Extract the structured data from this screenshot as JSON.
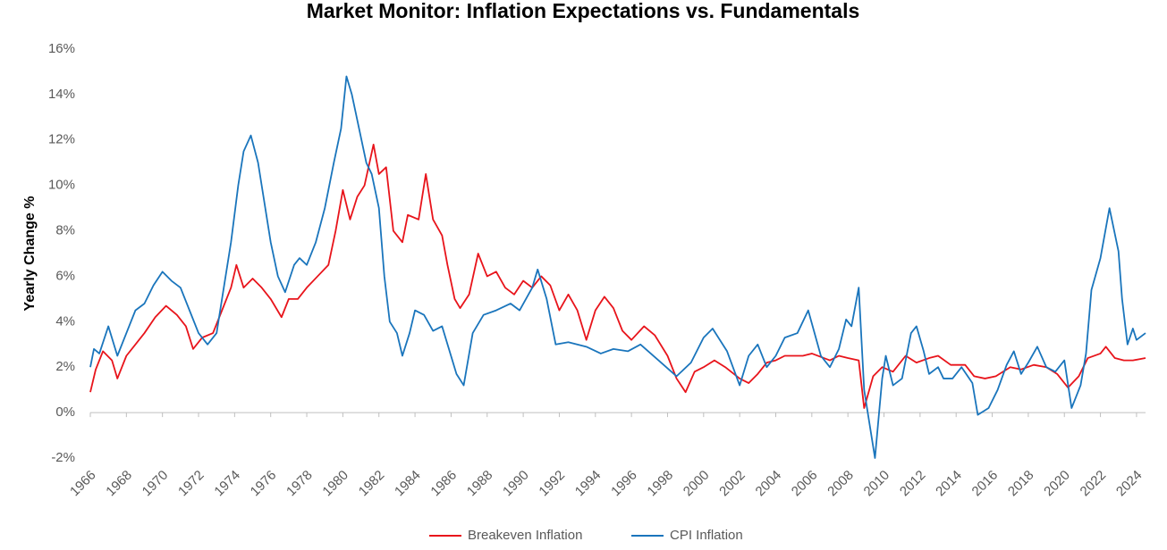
{
  "chart_data": {
    "type": "line",
    "title": "Market Monitor: Inflation Expectations vs. Fundamentals",
    "y_label": "Yearly Change %",
    "xlim": [
      1966,
      2024.5
    ],
    "xticks": [
      1966,
      1968,
      1970,
      1972,
      1974,
      1976,
      1978,
      1980,
      1982,
      1984,
      1986,
      1988,
      1990,
      1992,
      1994,
      1996,
      1998,
      2000,
      2002,
      2004,
      2006,
      2008,
      2010,
      2012,
      2014,
      2016,
      2018,
      2020,
      2022,
      2024
    ],
    "ylim": [
      -2,
      16
    ],
    "yticks": [
      {
        "value": -2,
        "label": "-2%"
      },
      {
        "value": 0,
        "label": "0%"
      },
      {
        "value": 2,
        "label": "2%"
      },
      {
        "value": 4,
        "label": "4%"
      },
      {
        "value": 6,
        "label": "6%"
      },
      {
        "value": 8,
        "label": "8%"
      },
      {
        "value": 10,
        "label": "10%"
      },
      {
        "value": 12,
        "label": "12%"
      },
      {
        "value": 14,
        "label": "14%"
      },
      {
        "value": 16,
        "label": "16%"
      }
    ],
    "legend": "bottom",
    "series": [
      {
        "name": "Breakeven Inflation",
        "color": "#e8141b",
        "x": [
          1966,
          1966.3,
          1966.7,
          1967.2,
          1967.5,
          1968,
          1968.5,
          1969,
          1969.6,
          1970.2,
          1970.8,
          1971.3,
          1971.7,
          1972.2,
          1972.8,
          1973.3,
          1973.8,
          1974.1,
          1974.5,
          1975,
          1975.5,
          1976,
          1976.6,
          1977,
          1977.5,
          1978,
          1978.6,
          1979.2,
          1979.6,
          1980,
          1980.4,
          1980.8,
          1981.2,
          1981.7,
          1982,
          1982.4,
          1982.8,
          1983.3,
          1983.6,
          1984.2,
          1984.6,
          1985,
          1985.5,
          1985.8,
          1986.2,
          1986.5,
          1987,
          1987.5,
          1988,
          1988.5,
          1989,
          1989.5,
          1990,
          1990.5,
          1991,
          1991.5,
          1992,
          1992.5,
          1993,
          1993.5,
          1994,
          1994.5,
          1995,
          1995.5,
          1996,
          1996.7,
          1997.3,
          1998,
          1998.5,
          1999,
          1999.5,
          2000,
          2000.6,
          2001.2,
          2002,
          2002.5,
          2003,
          2003.5,
          2004,
          2004.5,
          2005.5,
          2006,
          2007,
          2007.5,
          2008,
          2008.6,
          2008.9,
          2009.4,
          2009.9,
          2010.5,
          2011.2,
          2011.8,
          2012.5,
          2013,
          2013.7,
          2014.5,
          2015,
          2015.6,
          2016.2,
          2017,
          2017.6,
          2018.3,
          2019,
          2019.6,
          2020.2,
          2020.8,
          2021.3,
          2022,
          2022.3,
          2022.8,
          2023.3,
          2023.8,
          2024.5
        ],
        "values": [
          0.9,
          1.9,
          2.7,
          2.3,
          1.5,
          2.5,
          3.0,
          3.5,
          4.2,
          4.7,
          4.3,
          3.8,
          2.8,
          3.3,
          3.5,
          4.5,
          5.5,
          6.5,
          5.5,
          5.9,
          5.5,
          5.0,
          4.2,
          5.0,
          5.0,
          5.5,
          6.0,
          6.5,
          8.0,
          9.8,
          8.5,
          9.5,
          10.0,
          11.8,
          10.5,
          10.8,
          8.0,
          7.5,
          8.7,
          8.5,
          10.5,
          8.5,
          7.8,
          6.5,
          5.0,
          4.6,
          5.2,
          7.0,
          6.0,
          6.2,
          5.5,
          5.2,
          5.8,
          5.5,
          6.0,
          5.6,
          4.5,
          5.2,
          4.5,
          3.2,
          4.5,
          5.1,
          4.6,
          3.6,
          3.2,
          3.8,
          3.4,
          2.5,
          1.5,
          0.9,
          1.8,
          2.0,
          2.3,
          2.0,
          1.5,
          1.3,
          1.7,
          2.2,
          2.3,
          2.5,
          2.5,
          2.6,
          2.3,
          2.5,
          2.4,
          2.3,
          0.2,
          1.6,
          2.0,
          1.8,
          2.5,
          2.2,
          2.4,
          2.5,
          2.1,
          2.1,
          1.6,
          1.5,
          1.6,
          2.0,
          1.9,
          2.1,
          2.0,
          1.7,
          1.1,
          1.6,
          2.4,
          2.6,
          2.9,
          2.4,
          2.3,
          2.3,
          2.4
        ]
      },
      {
        "name": "CPI Inflation",
        "color": "#1a75bc",
        "x": [
          1966,
          1966.2,
          1966.5,
          1967,
          1967.5,
          1968,
          1968.5,
          1969,
          1969.5,
          1970,
          1970.5,
          1971,
          1971.5,
          1972,
          1972.5,
          1973,
          1973.3,
          1973.8,
          1974.2,
          1974.5,
          1974.9,
          1975.3,
          1975.6,
          1976,
          1976.4,
          1976.8,
          1977.3,
          1977.6,
          1978,
          1978.5,
          1979,
          1979.5,
          1979.9,
          1980.2,
          1980.5,
          1980.9,
          1981.3,
          1981.6,
          1982,
          1982.3,
          1982.6,
          1983,
          1983.3,
          1983.7,
          1984,
          1984.5,
          1985,
          1985.5,
          1986.3,
          1986.7,
          1987.2,
          1987.8,
          1988.5,
          1989.3,
          1989.8,
          1990.5,
          1990.8,
          1991.3,
          1991.8,
          1992.5,
          1993.5,
          1994.3,
          1995,
          1995.8,
          1996.5,
          1997.5,
          1998.5,
          1999.3,
          2000,
          2000.5,
          2001.3,
          2002,
          2002.5,
          2003,
          2003.5,
          2004,
          2004.5,
          2005.2,
          2005.8,
          2006.5,
          2007,
          2007.5,
          2007.9,
          2008.2,
          2008.6,
          2008.9,
          2009.2,
          2009.5,
          2009.9,
          2010.1,
          2010.5,
          2011,
          2011.5,
          2011.8,
          2012.2,
          2012.5,
          2013,
          2013.3,
          2013.8,
          2014.3,
          2014.9,
          2015.2,
          2015.8,
          2016.3,
          2016.8,
          2017.2,
          2017.6,
          2018,
          2018.5,
          2019,
          2019.5,
          2020,
          2020.4,
          2020.9,
          2021.2,
          2021.5,
          2022,
          2022.5,
          2023,
          2023.2,
          2023.5,
          2023.8,
          2024,
          2024.5
        ],
        "values": [
          2.0,
          2.8,
          2.6,
          3.8,
          2.5,
          3.5,
          4.5,
          4.8,
          5.6,
          6.2,
          5.8,
          5.5,
          4.5,
          3.5,
          3.0,
          3.5,
          5.0,
          7.5,
          10.0,
          11.5,
          12.2,
          11.0,
          9.5,
          7.5,
          6.0,
          5.3,
          6.5,
          6.8,
          6.5,
          7.5,
          9.0,
          11.0,
          12.5,
          14.8,
          14.0,
          12.5,
          11.0,
          10.5,
          9.0,
          6.0,
          4.0,
          3.5,
          2.5,
          3.5,
          4.5,
          4.3,
          3.6,
          3.8,
          1.7,
          1.2,
          3.5,
          4.3,
          4.5,
          4.8,
          4.5,
          5.5,
          6.3,
          5.0,
          3.0,
          3.1,
          2.9,
          2.6,
          2.8,
          2.7,
          3.0,
          2.3,
          1.6,
          2.2,
          3.3,
          3.7,
          2.7,
          1.2,
          2.5,
          3.0,
          2.0,
          2.5,
          3.3,
          3.5,
          4.5,
          2.5,
          2.0,
          2.8,
          4.1,
          3.8,
          5.5,
          1.0,
          -0.5,
          -2.0,
          1.5,
          2.5,
          1.2,
          1.5,
          3.5,
          3.8,
          2.7,
          1.7,
          2.0,
          1.5,
          1.5,
          2.0,
          1.3,
          -0.1,
          0.2,
          1.0,
          2.1,
          2.7,
          1.7,
          2.2,
          2.9,
          2.0,
          1.8,
          2.3,
          0.2,
          1.2,
          2.6,
          5.4,
          6.8,
          9.0,
          7.1,
          5.0,
          3.0,
          3.7,
          3.2,
          3.5
        ]
      }
    ]
  }
}
